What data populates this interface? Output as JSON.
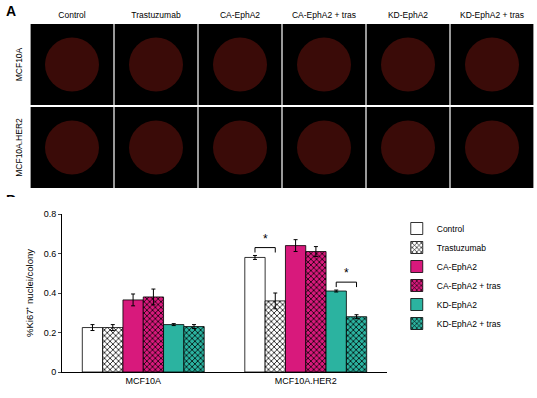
{
  "panel_labels": [
    "A",
    "B"
  ],
  "image_grid": {
    "columns": [
      "Control",
      "Trastuzumab",
      "CA-EphA2",
      "CA-EphA2 + tras",
      "KD-EphA2",
      "KD-EphA2 + tras"
    ],
    "rows": [
      "MCF10A",
      "MCF10A.HER2"
    ]
  },
  "chart_data": {
    "type": "bar",
    "y_label": "%Ki67⁺ nuclei/colony",
    "categories": [
      "MCF10A",
      "MCF10A.HER2"
    ],
    "series": [
      {
        "name": "Control",
        "color": "#ffffff",
        "marker": "solid",
        "values": [
          0.225,
          0.58
        ],
        "errors": [
          0.015,
          0.01
        ]
      },
      {
        "name": "Trastuzumab",
        "color": "#ffffff",
        "marker": "checkered",
        "values": [
          0.225,
          0.36
        ],
        "errors": [
          0.015,
          0.04
        ]
      },
      {
        "name": "CA-EphA2",
        "color": "#d8197c",
        "marker": "solid",
        "values": [
          0.365,
          0.64
        ],
        "errors": [
          0.03,
          0.03
        ]
      },
      {
        "name": "CA-EphA2 + tras",
        "color": "#d8197c",
        "marker": "checkered",
        "values": [
          0.38,
          0.61
        ],
        "errors": [
          0.04,
          0.025
        ]
      },
      {
        "name": "KD-EphA2",
        "color": "#2bb3a0",
        "marker": "solid",
        "values": [
          0.24,
          0.41
        ],
        "errors": [
          0.005,
          0.005
        ]
      },
      {
        "name": "KD-EphA2 + tras",
        "color": "#2bb3a0",
        "marker": "checkered",
        "values": [
          0.23,
          0.28
        ],
        "errors": [
          0.01,
          0.01
        ]
      }
    ],
    "ylim": [
      0,
      0.8
    ],
    "yticks": [
      0,
      {
        "value": 0.2,
        "label": "0.2"
      },
      {
        "value": 0.4,
        "label": "0.4"
      },
      {
        "value": 0.6,
        "label": "0.6"
      },
      {
        "value": 0.8,
        "label": "0.8"
      }
    ],
    "grid": false,
    "legend": "right",
    "annotations": [
      {
        "text": "*",
        "category": "MCF10A.HER2",
        "from": "Control",
        "to": "Trastuzumab"
      },
      {
        "text": "*",
        "category": "MCF10A.HER2",
        "from": "KD-EphA2",
        "to": "KD-EphA2 + tras"
      }
    ]
  }
}
